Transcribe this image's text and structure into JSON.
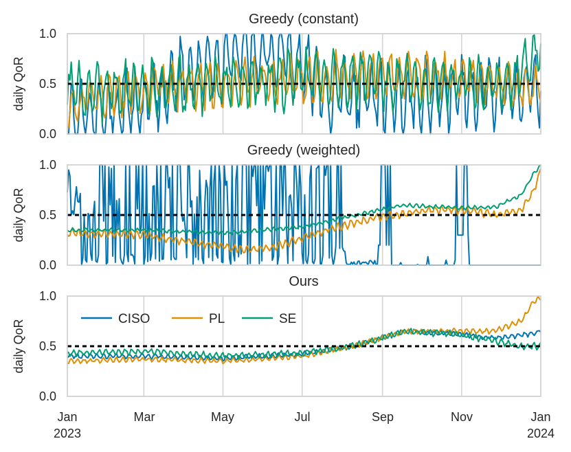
{
  "figure": {
    "xlabel_ticks": [
      {
        "line1": "Jan",
        "line2": "2023",
        "day": 0
      },
      {
        "line1": "Mar",
        "line2": "",
        "day": 59
      },
      {
        "line1": "May",
        "line2": "",
        "day": 120
      },
      {
        "line1": "Jul",
        "line2": "",
        "day": 181
      },
      {
        "line1": "Sep",
        "line2": "",
        "day": 243
      },
      {
        "line1": "Nov",
        "line2": "",
        "day": 304
      },
      {
        "line1": "Jan",
        "line2": "2024",
        "day": 365
      }
    ],
    "colors": {
      "CISO": "#0173b2",
      "PL": "#de8f05",
      "SE": "#029e73",
      "threshold": "#000000",
      "grid": "#d4d4d4",
      "spine": "#cccccc"
    },
    "legend": [
      "CISO",
      "PL",
      "SE"
    ]
  },
  "chart_data": [
    {
      "type": "line",
      "title": "Greedy (constant)",
      "ylabel": "daily QoR",
      "ylim": [
        0,
        1
      ],
      "yticks": [
        "0.0",
        "0.5",
        "1.0"
      ],
      "threshold": 0.5,
      "x_unit": "day of 2023",
      "series": [
        {
          "name": "CISO",
          "anchors": [
            [
              0,
              0.15
            ],
            [
              30,
              0.2
            ],
            [
              60,
              0.3
            ],
            [
              90,
              0.6
            ],
            [
              120,
              0.7
            ],
            [
              150,
              0.85
            ],
            [
              181,
              0.75
            ],
            [
              200,
              0.4
            ],
            [
              243,
              0.35
            ],
            [
              304,
              0.4
            ],
            [
              365,
              0.45
            ]
          ],
          "amp": 0.28,
          "period": 7,
          "seed": 11
        },
        {
          "name": "PL",
          "anchors": [
            [
              0,
              0.3
            ],
            [
              60,
              0.45
            ],
            [
              120,
              0.5
            ],
            [
              181,
              0.55
            ],
            [
              243,
              0.6
            ],
            [
              304,
              0.55
            ],
            [
              365,
              0.45
            ]
          ],
          "amp": 0.18,
          "period": 7,
          "seed": 23
        },
        {
          "name": "SE",
          "anchors": [
            [
              0,
              0.45
            ],
            [
              60,
              0.45
            ],
            [
              120,
              0.5
            ],
            [
              181,
              0.55
            ],
            [
              243,
              0.55
            ],
            [
              304,
              0.5
            ],
            [
              340,
              0.5
            ],
            [
              365,
              0.9
            ]
          ],
          "amp": 0.22,
          "period": 7,
          "seed": 37
        }
      ]
    },
    {
      "type": "line",
      "title": "Greedy (weighted)",
      "ylabel": "daily QoR",
      "ylim": [
        0,
        1
      ],
      "yticks": [
        "0.0",
        "0.5",
        "1.0"
      ],
      "threshold": 0.5,
      "x_unit": "day of 2023",
      "series": [
        {
          "name": "CISO",
          "kind": "spiky",
          "seed": 5
        },
        {
          "name": "PL",
          "anchors": [
            [
              0,
              0.32
            ],
            [
              60,
              0.3
            ],
            [
              100,
              0.22
            ],
            [
              140,
              0.15
            ],
            [
              160,
              0.18
            ],
            [
              200,
              0.35
            ],
            [
              240,
              0.48
            ],
            [
              280,
              0.55
            ],
            [
              304,
              0.55
            ],
            [
              330,
              0.5
            ],
            [
              350,
              0.55
            ],
            [
              360,
              0.75
            ],
            [
              365,
              0.95
            ]
          ],
          "amp": 0.03,
          "period": 5,
          "seed": 41
        },
        {
          "name": "SE",
          "anchors": [
            [
              0,
              0.35
            ],
            [
              60,
              0.35
            ],
            [
              120,
              0.32
            ],
            [
              181,
              0.38
            ],
            [
              230,
              0.52
            ],
            [
              260,
              0.6
            ],
            [
              304,
              0.57
            ],
            [
              330,
              0.58
            ],
            [
              350,
              0.7
            ],
            [
              360,
              0.92
            ],
            [
              365,
              1.0
            ]
          ],
          "amp": 0.015,
          "period": 5,
          "seed": 53
        }
      ]
    },
    {
      "type": "line",
      "title": "Ours",
      "ylabel": "daily QoR",
      "ylim": [
        0,
        1
      ],
      "yticks": [
        "0.0",
        "0.5",
        "1.0"
      ],
      "threshold": 0.5,
      "x_unit": "day of 2023",
      "series": [
        {
          "name": "CISO",
          "anchors": [
            [
              0,
              0.4
            ],
            [
              60,
              0.4
            ],
            [
              120,
              0.38
            ],
            [
              181,
              0.42
            ],
            [
              220,
              0.5
            ],
            [
              260,
              0.65
            ],
            [
              300,
              0.62
            ],
            [
              330,
              0.58
            ],
            [
              355,
              0.62
            ],
            [
              365,
              0.65
            ]
          ],
          "amp": 0.02,
          "period": 5,
          "seed": 61
        },
        {
          "name": "PL",
          "anchors": [
            [
              0,
              0.35
            ],
            [
              60,
              0.37
            ],
            [
              120,
              0.35
            ],
            [
              181,
              0.4
            ],
            [
              220,
              0.5
            ],
            [
              260,
              0.65
            ],
            [
              300,
              0.65
            ],
            [
              330,
              0.65
            ],
            [
              350,
              0.75
            ],
            [
              360,
              0.95
            ],
            [
              365,
              0.98
            ]
          ],
          "amp": 0.02,
          "period": 5,
          "seed": 67
        },
        {
          "name": "SE",
          "anchors": [
            [
              0,
              0.43
            ],
            [
              60,
              0.45
            ],
            [
              120,
              0.4
            ],
            [
              181,
              0.43
            ],
            [
              220,
              0.5
            ],
            [
              260,
              0.65
            ],
            [
              300,
              0.62
            ],
            [
              330,
              0.55
            ],
            [
              350,
              0.5
            ],
            [
              365,
              0.5
            ]
          ],
          "amp": 0.025,
          "period": 5,
          "seed": 71
        }
      ]
    }
  ]
}
